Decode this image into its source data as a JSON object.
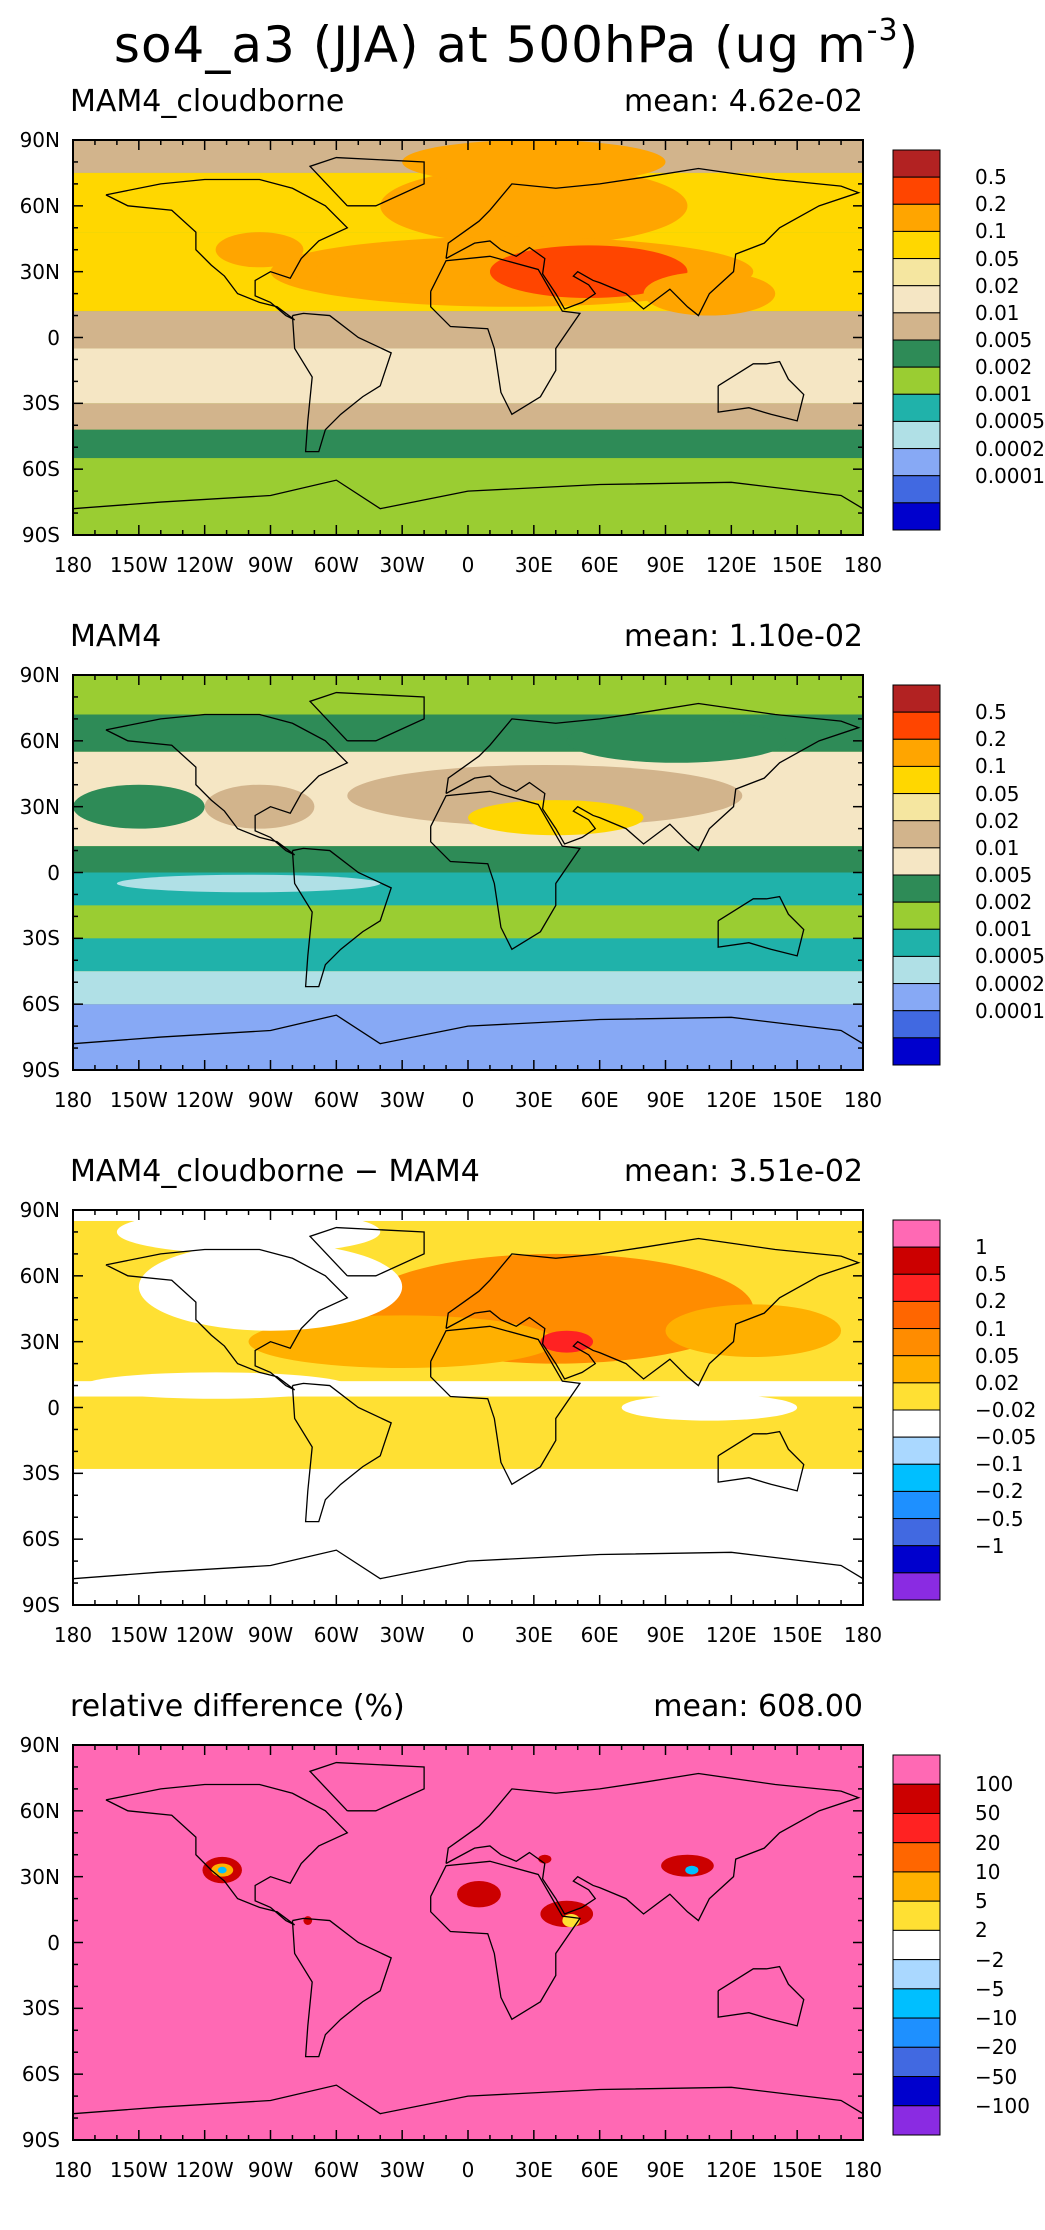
{
  "figure": {
    "title_main": "so4_a3 (JJA) at 500hPa (ug m",
    "title_exp": "-3",
    "title_close": ")"
  },
  "axes": {
    "lat_labels": [
      "90N",
      "60N",
      "30N",
      "0",
      "30S",
      "60S",
      "90S"
    ],
    "lon_labels": [
      "180",
      "150W",
      "120W",
      "90W",
      "60W",
      "30W",
      "0",
      "30E",
      "60E",
      "90E",
      "120E",
      "150E",
      "180"
    ]
  },
  "panels": [
    {
      "title": "MAM4_cloudborne",
      "mean": "mean: 4.62e-02",
      "colorbar": {
        "colors": [
          "#b22222",
          "#ff4500",
          "#ffa500",
          "#ffd700",
          "#f5e6a0",
          "#f5e6c4",
          "#d2b48c",
          "#2e8b57",
          "#9acd32",
          "#20b2aa",
          "#b0e0e6",
          "#87a9f5",
          "#4169e1",
          "#0000cd"
        ],
        "labels": [
          "0.5",
          "0.2",
          "0.1",
          "0.05",
          "0.02",
          "0.01",
          "0.005",
          "0.002",
          "0.001",
          "0.0005",
          "0.0002",
          "0.0001"
        ]
      },
      "field": {
        "base": "#9acd32",
        "bands": [
          {
            "lat0": 90,
            "lat1": 75,
            "color": "#d2b48c"
          },
          {
            "lat0": 75,
            "lat1": 48,
            "color": "#ffd700"
          },
          {
            "lat0": 48,
            "lat1": 12,
            "color": "#ffd700"
          },
          {
            "lat0": 12,
            "lat1": -5,
            "color": "#d2b48c"
          },
          {
            "lat0": -5,
            "lat1": -30,
            "color": "#f5e6c4"
          },
          {
            "lat0": -30,
            "lat1": -42,
            "color": "#d2b48c"
          },
          {
            "lat0": -42,
            "lat1": -55,
            "color": "#2e8b57"
          },
          {
            "lat0": -55,
            "lat1": -90,
            "color": "#9acd32"
          }
        ],
        "blobs": [
          {
            "lon": 30,
            "lat": 60,
            "rx": 70,
            "ry": 18,
            "color": "#ffa500"
          },
          {
            "lon": 20,
            "lat": 30,
            "rx": 110,
            "ry": 16,
            "color": "#ffa500"
          },
          {
            "lon": 55,
            "lat": 30,
            "rx": 45,
            "ry": 12,
            "color": "#ff4500"
          },
          {
            "lon": -30,
            "lat": 30,
            "rx": 40,
            "ry": 10,
            "color": "#ffa500"
          },
          {
            "lon": -95,
            "lat": 40,
            "rx": 20,
            "ry": 8,
            "color": "#ffa500"
          },
          {
            "lon": 30,
            "lat": 80,
            "rx": 60,
            "ry": 10,
            "color": "#ffa500"
          },
          {
            "lon": 110,
            "lat": 20,
            "rx": 30,
            "ry": 10,
            "color": "#ffa500"
          }
        ]
      }
    },
    {
      "title": "MAM4",
      "mean": "mean: 1.10e-02",
      "colorbar": {
        "colors": [
          "#b22222",
          "#ff4500",
          "#ffa500",
          "#ffd700",
          "#f5e6a0",
          "#d2b48c",
          "#f5e6c4",
          "#2e8b57",
          "#9acd32",
          "#20b2aa",
          "#b0e0e6",
          "#87a9f5",
          "#4169e1",
          "#0000cd"
        ],
        "labels": [
          "0.5",
          "0.2",
          "0.1",
          "0.05",
          "0.02",
          "0.01",
          "0.005",
          "0.002",
          "0.001",
          "0.0005",
          "0.0002",
          "0.0001"
        ]
      },
      "field": {
        "base": "#9acd32",
        "bands": [
          {
            "lat0": 90,
            "lat1": 72,
            "color": "#9acd32"
          },
          {
            "lat0": 72,
            "lat1": 55,
            "color": "#2e8b57"
          },
          {
            "lat0": 55,
            "lat1": 12,
            "color": "#f5e6c4"
          },
          {
            "lat0": 12,
            "lat1": 0,
            "color": "#2e8b57"
          },
          {
            "lat0": 0,
            "lat1": -15,
            "color": "#20b2aa"
          },
          {
            "lat0": -15,
            "lat1": -30,
            "color": "#9acd32"
          },
          {
            "lat0": -30,
            "lat1": -45,
            "color": "#20b2aa"
          },
          {
            "lat0": -45,
            "lat1": -60,
            "color": "#b0e0e6"
          },
          {
            "lat0": -60,
            "lat1": -90,
            "color": "#87a9f5"
          }
        ],
        "blobs": [
          {
            "lon": 35,
            "lat": 35,
            "rx": 90,
            "ry": 14,
            "color": "#d2b48c"
          },
          {
            "lon": 40,
            "lat": 25,
            "rx": 40,
            "ry": 8,
            "color": "#ffd700"
          },
          {
            "lon": -95,
            "lat": 30,
            "rx": 25,
            "ry": 10,
            "color": "#d2b48c"
          },
          {
            "lon": 95,
            "lat": 60,
            "rx": 50,
            "ry": 10,
            "color": "#2e8b57"
          },
          {
            "lon": -150,
            "lat": 30,
            "rx": 30,
            "ry": 10,
            "color": "#2e8b57"
          },
          {
            "lon": -100,
            "lat": -5,
            "rx": 60,
            "ry": 4,
            "color": "#b0e0e6"
          }
        ]
      }
    },
    {
      "title": "MAM4_cloudborne − MAM4",
      "mean": "mean: 3.51e-02",
      "colorbar": {
        "colors": [
          "#ff69b4",
          "#cc0000",
          "#ff2222",
          "#ff6600",
          "#ff8c00",
          "#ffb000",
          "#ffe033",
          "#ffffff",
          "#aad8ff",
          "#00bfff",
          "#1e90ff",
          "#4169e1",
          "#0000cd",
          "#8a2be2"
        ],
        "labels": [
          "1",
          "0.5",
          "0.2",
          "0.1",
          "0.05",
          "0.02",
          "−0.02",
          "−0.05",
          "−0.1",
          "−0.2",
          "−0.5",
          "−1"
        ]
      },
      "field": {
        "base": "#ffffff",
        "bands": [
          {
            "lat0": 85,
            "lat1": 72,
            "color": "#ffe033"
          },
          {
            "lat0": 72,
            "lat1": 12,
            "color": "#ffe033"
          },
          {
            "lat0": 5,
            "lat1": -28,
            "color": "#ffe033"
          }
        ],
        "blobs": [
          {
            "lon": 40,
            "lat": 45,
            "rx": 90,
            "ry": 25,
            "color": "#ff8c00"
          },
          {
            "lon": -30,
            "lat": 30,
            "rx": 70,
            "ry": 12,
            "color": "#ffb000"
          },
          {
            "lon": 130,
            "lat": 35,
            "rx": 40,
            "ry": 12,
            "color": "#ffb000"
          },
          {
            "lon": 45,
            "lat": 30,
            "rx": 12,
            "ry": 5,
            "color": "#ff2222"
          },
          {
            "lon": -90,
            "lat": 55,
            "rx": 60,
            "ry": 20,
            "color": "#ffffff"
          },
          {
            "lon": -100,
            "lat": 80,
            "rx": 60,
            "ry": 10,
            "color": "#ffffff"
          },
          {
            "lon": -115,
            "lat": 10,
            "rx": 60,
            "ry": 6,
            "color": "#ffffff"
          },
          {
            "lon": 110,
            "lat": 0,
            "rx": 40,
            "ry": 6,
            "color": "#ffffff"
          }
        ]
      }
    },
    {
      "title": "relative difference (%)",
      "mean": "mean: 608.00",
      "colorbar": {
        "colors": [
          "#ff69b4",
          "#cc0000",
          "#ff2222",
          "#ff6600",
          "#ffb000",
          "#ffe033",
          "#ffffff",
          "#aad8ff",
          "#00bfff",
          "#1e90ff",
          "#4169e1",
          "#0000cd",
          "#8a2be2"
        ],
        "labels": [
          "100",
          "50",
          "20",
          "10",
          "5",
          "2",
          "−2",
          "−5",
          "−10",
          "−20",
          "−50",
          "−100"
        ]
      },
      "field": {
        "base": "#ff69b4",
        "bands": [],
        "blobs": [
          {
            "lon": -112,
            "lat": 33,
            "rx": 9,
            "ry": 6,
            "color": "#cc0000"
          },
          {
            "lon": -112,
            "lat": 33,
            "rx": 5,
            "ry": 3,
            "color": "#ffb000"
          },
          {
            "lon": -112,
            "lat": 33,
            "rx": 2,
            "ry": 1.5,
            "color": "#00bfff"
          },
          {
            "lon": 5,
            "lat": 22,
            "rx": 10,
            "ry": 6,
            "color": "#cc0000"
          },
          {
            "lon": 45,
            "lat": 13,
            "rx": 12,
            "ry": 6,
            "color": "#cc0000"
          },
          {
            "lon": 47,
            "lat": 10,
            "rx": 4,
            "ry": 3,
            "color": "#ffe033"
          },
          {
            "lon": 100,
            "lat": 35,
            "rx": 12,
            "ry": 5,
            "color": "#cc0000"
          },
          {
            "lon": 102,
            "lat": 33,
            "rx": 3,
            "ry": 2,
            "color": "#00bfff"
          },
          {
            "lon": -73,
            "lat": 10,
            "rx": 2,
            "ry": 2,
            "color": "#cc0000"
          },
          {
            "lon": 35,
            "lat": 38,
            "rx": 3,
            "ry": 2,
            "color": "#cc0000"
          }
        ]
      }
    }
  ]
}
